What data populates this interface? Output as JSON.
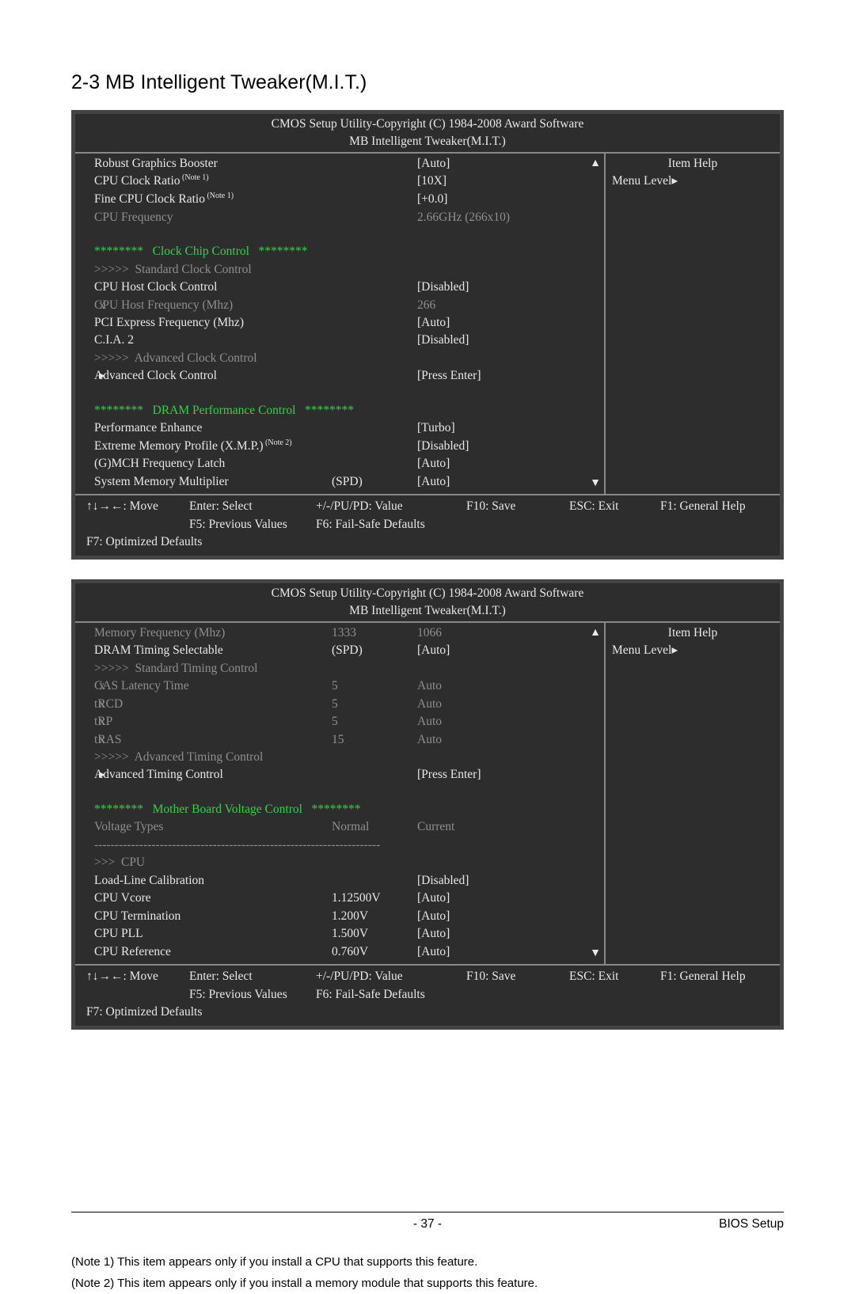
{
  "section_title": "2-3    MB Intelligent Tweaker(M.I.T.)",
  "header_line1": "CMOS Setup Utility-Copyright (C) 1984-2008 Award Software",
  "header_line2": "MB Intelligent Tweaker(M.I.T.)",
  "side": {
    "item_help": "Item Help",
    "menu_level": "Menu Level",
    "arrow": "▸"
  },
  "box1": {
    "rows": [
      {
        "m": "",
        "c": "w",
        "l": "Robust Graphics Booster",
        "v2": "",
        "v3": "[Auto]"
      },
      {
        "m": "",
        "c": "w",
        "l": "CPU Clock Ratio",
        "sup": "(Note 1)",
        "v2": "",
        "v3": "[10X]"
      },
      {
        "m": "",
        "c": "w",
        "l": "Fine CPU Clock Ratio",
        "sup": "(Note 1)",
        "v2": "",
        "v3": "[+0.0]"
      },
      {
        "m": "",
        "c": "d",
        "l": "CPU Frequency",
        "v2": "",
        "v3": "2.66GHz (266x10)"
      },
      {
        "spacer": true
      },
      {
        "m": "",
        "c": "g",
        "l": "********   Clock Chip Control   ********"
      },
      {
        "m": "",
        "c": "d",
        "l": ">>>>>  Standard Clock Control"
      },
      {
        "m": "",
        "c": "w",
        "l": "CPU Host Clock Control",
        "v2": "",
        "v3": "[Disabled]"
      },
      {
        "m": "x",
        "c": "d",
        "l": "CPU Host Frequency (Mhz)",
        "v2": "",
        "v3": "266"
      },
      {
        "m": "",
        "c": "w",
        "l": "PCI Express Frequency (Mhz)",
        "v2": "",
        "v3": "[Auto]"
      },
      {
        "m": "",
        "c": "w",
        "l": "C.I.A. 2",
        "v2": "",
        "v3": "[Disabled]"
      },
      {
        "m": "",
        "c": "d",
        "l": ">>>>>  Advanced Clock Control"
      },
      {
        "m": "▸",
        "c": "w",
        "l": "Advanced Clock Control",
        "v2": "",
        "v3": "[Press Enter]"
      },
      {
        "spacer": true
      },
      {
        "m": "",
        "c": "g",
        "l": "********   DRAM Performance Control   ********"
      },
      {
        "m": "",
        "c": "w",
        "l": "Performance Enhance",
        "v2": "",
        "v3": "[Turbo]"
      },
      {
        "m": "",
        "c": "w",
        "l": "Extreme Memory Profile (X.M.P.)",
        "sup": "(Note 2)",
        "v2": "",
        "v3": "[Disabled]"
      },
      {
        "m": "",
        "c": "w",
        "l": "(G)MCH Frequency Latch",
        "v2": "",
        "v3": "[Auto]"
      },
      {
        "m": "",
        "c": "w",
        "l": "System Memory Multiplier",
        "v2": "(SPD)",
        "v3": "[Auto]"
      }
    ]
  },
  "box2": {
    "rows": [
      {
        "m": "",
        "c": "d",
        "l": "Memory Frequency (Mhz)",
        "v2": "1333",
        "v3": "1066"
      },
      {
        "m": "",
        "c": "w",
        "l": "DRAM Timing Selectable",
        "v2": "(SPD)",
        "v3": "[Auto]"
      },
      {
        "m": "",
        "c": "d",
        "l": ">>>>>  Standard Timing Control"
      },
      {
        "m": "x",
        "c": "d",
        "l": "CAS Latency Time",
        "v2": "5",
        "v3": "Auto"
      },
      {
        "m": "x",
        "c": "d",
        "l": "tRCD",
        "v2": "5",
        "v3": "Auto"
      },
      {
        "m": "x",
        "c": "d",
        "l": "tRP",
        "v2": "5",
        "v3": "Auto"
      },
      {
        "m": "x",
        "c": "d",
        "l": "tRAS",
        "v2": "15",
        "v3": "Auto"
      },
      {
        "m": "",
        "c": "d",
        "l": ">>>>>  Advanced Timing Control"
      },
      {
        "m": "▸",
        "c": "w",
        "l": "Advanced Timing Control",
        "v2": "",
        "v3": "[Press Enter]"
      },
      {
        "spacer": true
      },
      {
        "m": "",
        "c": "g",
        "l": "********   Mother Board Voltage Control   ********"
      },
      {
        "m": "",
        "c": "d",
        "l": "Voltage Types",
        "v2": "Normal",
        "v3": "Current"
      },
      {
        "dashline": true
      },
      {
        "m": "",
        "c": "d",
        "l": ">>>  CPU"
      },
      {
        "m": "",
        "c": "w",
        "l": "Load-Line Calibration",
        "v2": "",
        "v3": "[Disabled]"
      },
      {
        "m": "",
        "c": "w",
        "l": "CPU Vcore",
        "v2": "1.12500V",
        "v3": "[Auto]"
      },
      {
        "m": "",
        "c": "w",
        "l": "CPU Termination",
        "v2": "1.200V",
        "v3": "[Auto]"
      },
      {
        "m": "",
        "c": "w",
        "l": "CPU PLL",
        "v2": "1.500V",
        "v3": "[Auto]"
      },
      {
        "m": "",
        "c": "w",
        "l": "CPU Reference",
        "v2": "0.760V",
        "v3": "[Auto]"
      }
    ]
  },
  "footer": {
    "move": "↑↓→←: Move",
    "enter": "Enter: Select",
    "pupd": "+/-/PU/PD: Value",
    "f10": "F10: Save",
    "esc": "ESC: Exit",
    "f1": "F1: General Help",
    "f5": "F5: Previous Values",
    "f6": "F6: Fail-Safe Defaults",
    "f7": "F7: Optimized Defaults"
  },
  "notes": {
    "n1": "(Note 1) This item appears only if you install a CPU that supports this feature.",
    "n2": "(Note 2) This item appears only if you install a memory module that supports this feature."
  },
  "page": {
    "num": "- 37 -",
    "section": "BIOS Setup"
  }
}
